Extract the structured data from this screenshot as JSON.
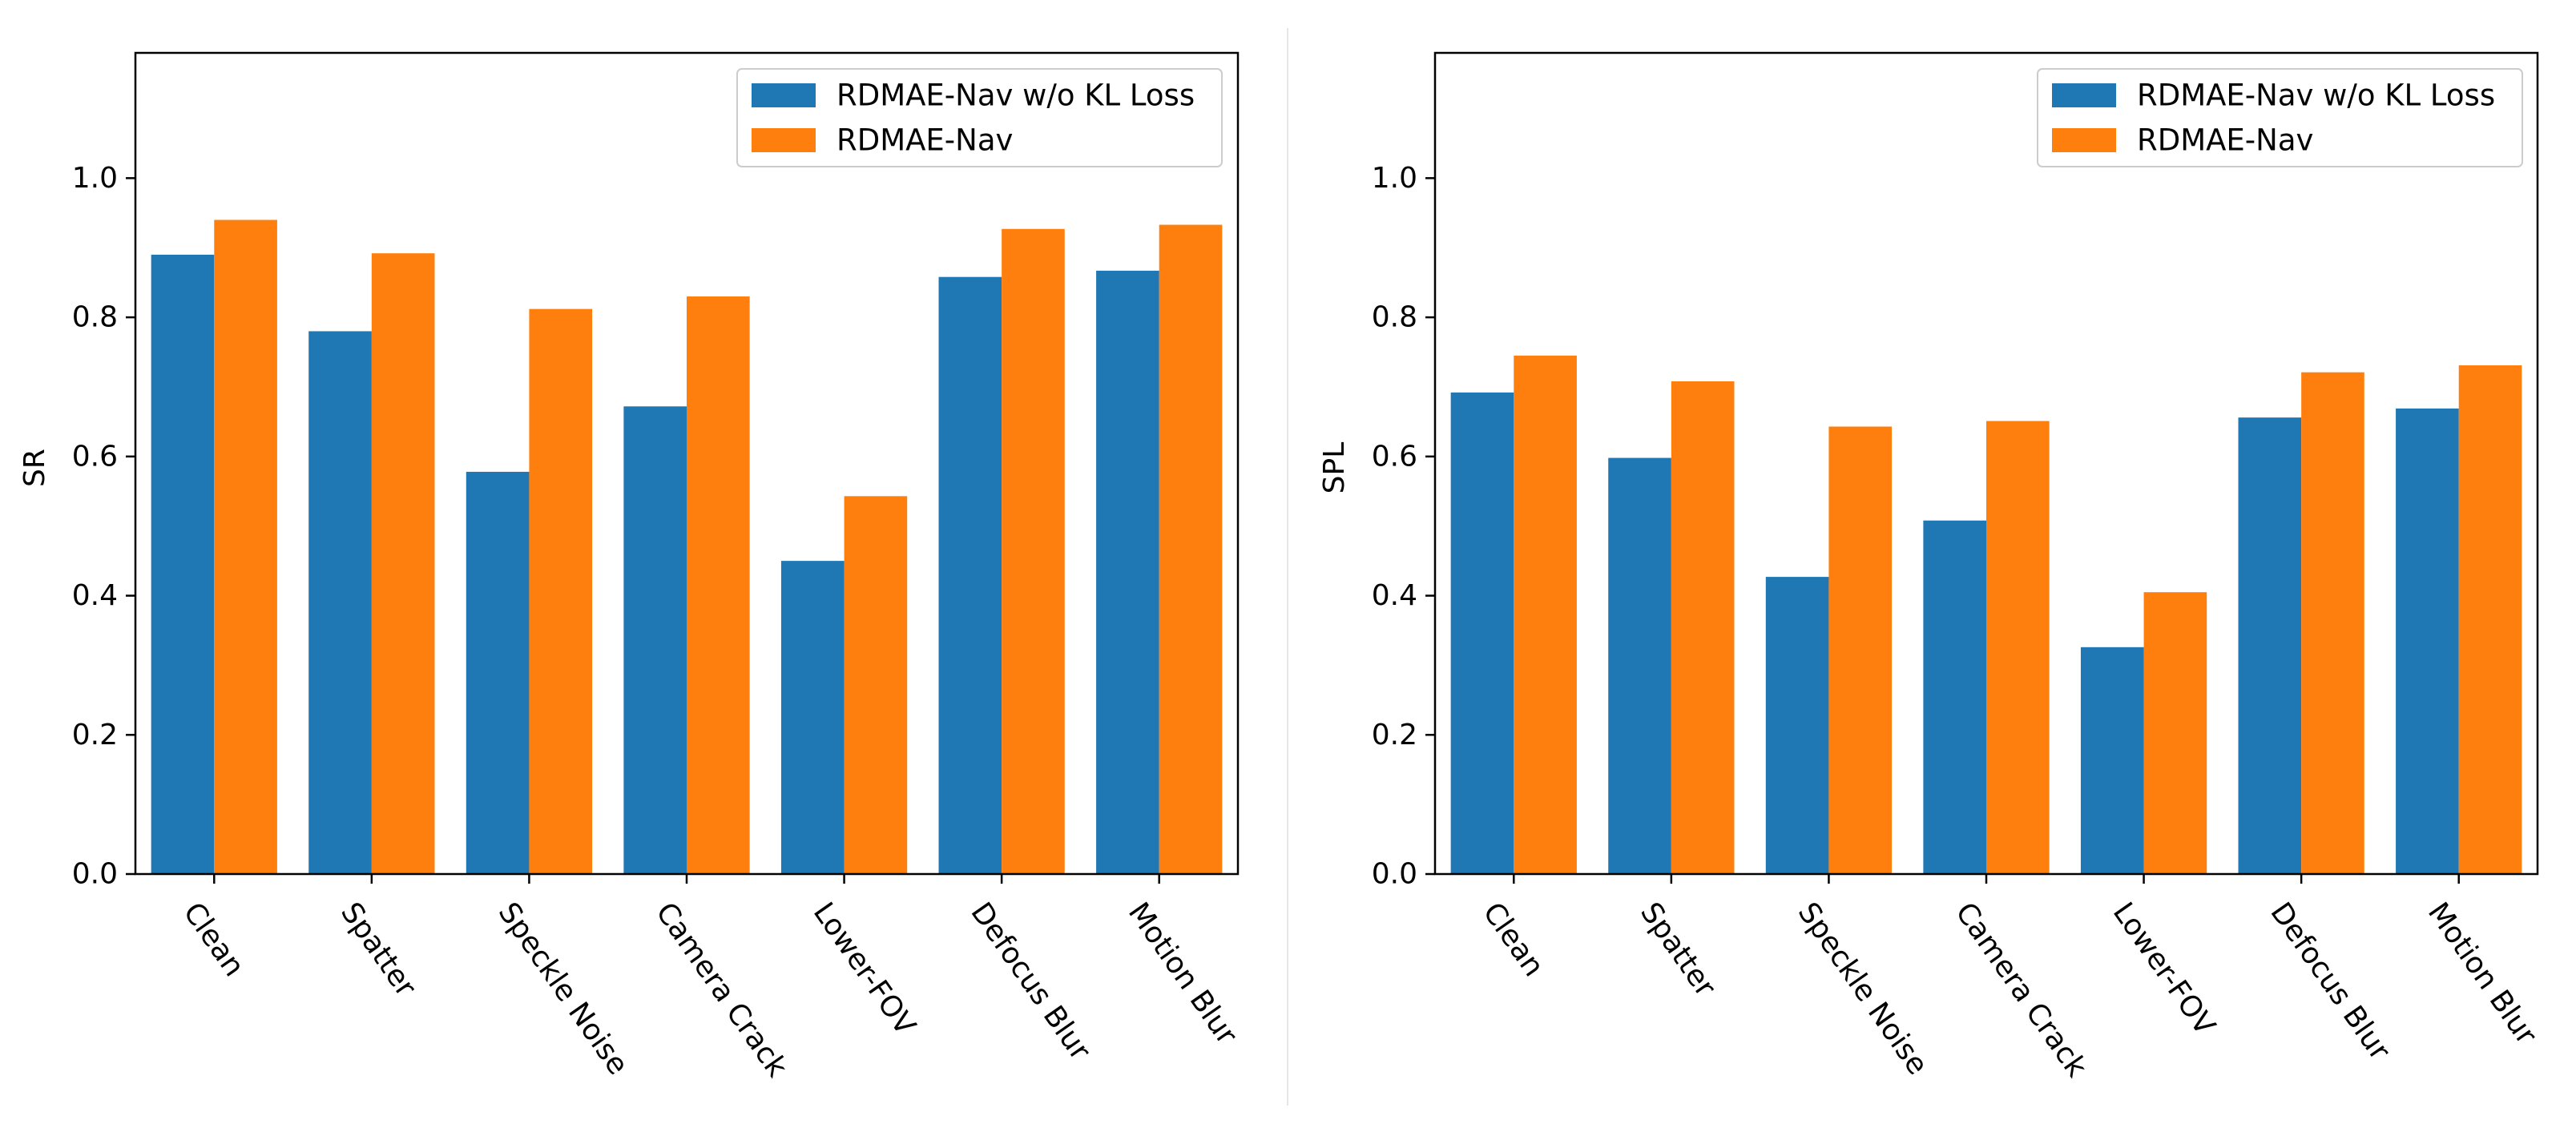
{
  "colors": {
    "series_1": "#1f77b4",
    "series_2": "#ff7f0e",
    "axis": "#000000",
    "legend_border": "#cccccc",
    "divider": "#e6e6e6"
  },
  "chart_data": [
    {
      "type": "bar",
      "title": "",
      "xlabel": "",
      "ylabel": "SR",
      "ylim": [
        0,
        1.18
      ],
      "yticks": [
        "0.0",
        "0.2",
        "0.4",
        "0.6",
        "0.8",
        "1.0"
      ],
      "categories": [
        "Clean",
        "Spatter",
        "Speckle Noise",
        "Camera Crack",
        "Lower-FOV",
        "Defocus Blur",
        "Motion Blur"
      ],
      "grid": false,
      "legend_position": "top-right",
      "series": [
        {
          "name": "RDMAE-Nav w/o KL Loss",
          "values": [
            0.89,
            0.78,
            0.578,
            0.672,
            0.45,
            0.858,
            0.867
          ]
        },
        {
          "name": "RDMAE-Nav",
          "values": [
            0.94,
            0.892,
            0.812,
            0.83,
            0.543,
            0.927,
            0.933
          ]
        }
      ]
    },
    {
      "type": "bar",
      "title": "",
      "xlabel": "",
      "ylabel": "SPL",
      "ylim": [
        0,
        1.18
      ],
      "yticks": [
        "0.0",
        "0.2",
        "0.4",
        "0.6",
        "0.8",
        "1.0"
      ],
      "categories": [
        "Clean",
        "Spatter",
        "Speckle Noise",
        "Camera Crack",
        "Lower-FOV",
        "Defocus Blur",
        "Motion Blur"
      ],
      "grid": false,
      "legend_position": "top-right",
      "series": [
        {
          "name": "RDMAE-Nav w/o KL Loss",
          "values": [
            0.692,
            0.598,
            0.427,
            0.508,
            0.326,
            0.656,
            0.669
          ]
        },
        {
          "name": "RDMAE-Nav",
          "values": [
            0.745,
            0.708,
            0.643,
            0.651,
            0.405,
            0.721,
            0.731
          ]
        }
      ]
    }
  ]
}
